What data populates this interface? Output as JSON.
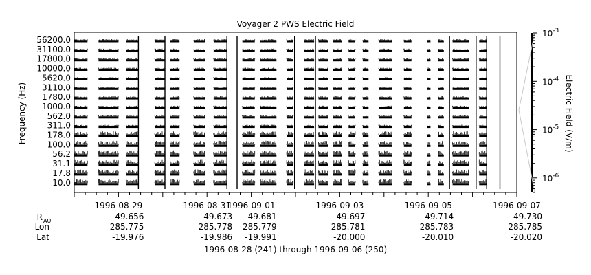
{
  "chart_data": {
    "type": "heatmap",
    "title": "Voyager 2 PWS Electric Field",
    "ylabel": "Frequency (Hz)",
    "colorbar_label": "Electric Field (V/m)",
    "colorbar_scale": "log",
    "colorbar_ticks": [
      {
        "value": 0.001,
        "base": "10",
        "exp": "-3"
      },
      {
        "value": 0.0001,
        "base": "10",
        "exp": "-4"
      },
      {
        "value": 1e-05,
        "base": "10",
        "exp": "-5"
      },
      {
        "value": 1e-06,
        "base": "10",
        "exp": "-6"
      }
    ],
    "colorbar_range": [
      5e-07,
      0.001
    ],
    "channels": [
      "56200.0",
      "31100.0",
      "17800.0",
      "10000.0",
      "5620.0",
      "3110.0",
      "1780.0",
      "1000.0",
      "562.0",
      "311.0",
      "178.0",
      "100.0",
      "56.2",
      "31.1",
      "17.8",
      "10.0"
    ],
    "x_range_days": [
      241,
      251
    ],
    "x_labels": [
      {
        "label": "1996-08-29",
        "day": 242
      },
      {
        "label": "1996-08-31",
        "day": 244
      },
      {
        "label": "1996-09-01",
        "day": 245
      },
      {
        "label": "1996-09-03",
        "day": 247
      },
      {
        "label": "1996-09-05",
        "day": 249
      },
      {
        "label": "1996-09-07",
        "day": 251
      }
    ],
    "ephemeris_labels": {
      "r": "R",
      "r_sub": "AU",
      "lon": "Lon",
      "lat": "Lat"
    },
    "ephemeris": [
      {
        "day": 242,
        "r": "49.656",
        "lon": "285.775",
        "lat": "-19.976"
      },
      {
        "day": 244,
        "r": "49.673",
        "lon": "285.778",
        "lat": "-19.986"
      },
      {
        "day": 245,
        "r": "49.681",
        "lon": "285.779",
        "lat": "-19.991"
      },
      {
        "day": 247,
        "r": "49.697",
        "lon": "285.781",
        "lat": "-20.000"
      },
      {
        "day": 249,
        "r": "49.714",
        "lon": "285.783",
        "lat": "-20.010"
      },
      {
        "day": 251,
        "r": "49.730",
        "lon": "285.785",
        "lat": "-20.020"
      }
    ],
    "date_range_caption": "1996-08-28 (241) through 1996-09-06 (250)",
    "data_segments_days": [
      [
        241.0,
        241.3
      ],
      [
        241.55,
        242.0
      ],
      [
        242.18,
        242.45
      ],
      [
        242.82,
        243.05
      ],
      [
        243.17,
        243.38
      ],
      [
        243.7,
        243.95
      ],
      [
        244.15,
        244.45
      ],
      [
        244.8,
        245.08
      ],
      [
        245.2,
        245.57
      ],
      [
        245.8,
        245.95
      ],
      [
        246.2,
        246.42
      ],
      [
        246.52,
        246.73
      ],
      [
        246.85,
        247.05
      ],
      [
        247.2,
        247.35
      ],
      [
        247.52,
        247.65
      ],
      [
        247.88,
        248.18
      ],
      [
        248.45,
        248.62
      ],
      [
        248.98,
        249.05
      ],
      [
        249.22,
        249.35
      ],
      [
        249.55,
        249.92
      ],
      [
        250.15,
        250.32
      ]
    ],
    "emission_events_days": [
      242.45,
      243.05,
      244.45,
      244.68,
      245.98,
      246.45,
      249.48,
      250.08,
      250.32,
      250.62
    ],
    "grid": false
  }
}
